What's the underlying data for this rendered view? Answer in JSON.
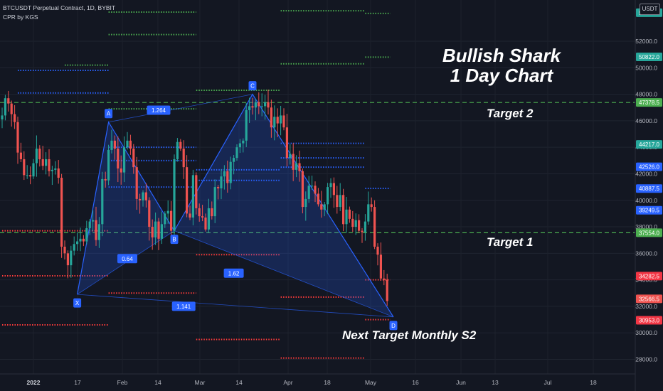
{
  "header": {
    "title": "BTCUSDT Perpetual Contract, 1D, BYBIT",
    "indicator": "CPR by KGS"
  },
  "currency_button": "USDT",
  "annotations": {
    "title_line1": "Bullish Shark",
    "title_line2": "1 Day Chart",
    "target2": "Target 2",
    "target1": "Target 1",
    "next_target": "Next Target Monthly S2"
  },
  "colors": {
    "background": "#131722",
    "bull": "#26a69a",
    "bear": "#ef5350",
    "pattern": "#2962ff",
    "target_line": "#4caf50",
    "r_level": "#4caf50",
    "s_level": "#ff3b3b",
    "pivot": "#2962ff"
  },
  "chart_data": {
    "type": "candlestick",
    "title": "BTCUSDT Perpetual Contract, 1D, BYBIT",
    "x_tick_labels": [
      "2022",
      "17",
      "Feb",
      "14",
      "Mar",
      "14",
      "Apr",
      "18",
      "May",
      "16",
      "Jun",
      "13",
      "Jul",
      "18"
    ],
    "y_ticks": [
      28000,
      30000,
      32000,
      34000,
      36000,
      38000,
      40000,
      42000,
      44000,
      46000,
      48000,
      50000,
      52000
    ],
    "ylim": [
      27000,
      54500
    ],
    "closes": [
      46400,
      47700,
      47300,
      46500,
      45900,
      43600,
      43100,
      41900,
      41900,
      41800,
      42800,
      43900,
      43100,
      42600,
      43100,
      42200,
      42300,
      42400,
      41700,
      36500,
      36000,
      35100,
      36200,
      36700,
      36900,
      37100,
      36900,
      37900,
      38400,
      38500,
      37000,
      38200,
      41600,
      41500,
      43800,
      44500,
      43900,
      42400,
      42100,
      44000,
      44500,
      43900,
      42500,
      40100,
      40000,
      40600,
      40000,
      38000,
      37200,
      38400,
      37100,
      38200,
      39000,
      39200,
      37700,
      43100,
      44400,
      43900,
      42500,
      39000,
      38700,
      41900,
      39400,
      38800,
      38700,
      37800,
      39400,
      38800,
      41000,
      40900,
      41800,
      42200,
      41300,
      42900,
      43200,
      44000,
      44300,
      44500,
      46800,
      47100,
      47000,
      47400,
      47100,
      47100,
      47400,
      47000,
      45500,
      46300,
      45800,
      46400,
      45500,
      43200,
      43500,
      42300,
      42800,
      42200,
      39500,
      40100,
      41100,
      41100,
      40500,
      39700,
      39300,
      39700,
      41000,
      41300,
      40400,
      39500,
      40400,
      38200,
      39300,
      38600,
      38000,
      38500,
      37700,
      37600,
      38400,
      39700,
      39500,
      36500,
      35900,
      34100,
      34000,
      32400
    ],
    "target_levels": [
      {
        "label": "Target 2",
        "price": 47378.5
      },
      {
        "label": "Target 1",
        "price": 37554.0
      }
    ],
    "price_labels": [
      {
        "value": "54150.0",
        "price": 54150,
        "color": "#26a69a"
      },
      {
        "value": "50822.0",
        "price": 50822,
        "color": "#26a69a"
      },
      {
        "value": "47378.5",
        "price": 47378.5,
        "color": "#4caf50"
      },
      {
        "value": "44217.0",
        "price": 44217,
        "color": "#26a69a"
      },
      {
        "value": "42526.0",
        "price": 42526,
        "color": "#2962ff"
      },
      {
        "value": "40887.5",
        "price": 40887.5,
        "color": "#2962ff"
      },
      {
        "value": "39249.5",
        "price": 39249.5,
        "color": "#2962ff"
      },
      {
        "value": "37554.0",
        "price": 37554,
        "color": "#4caf50"
      },
      {
        "value": "34282.5",
        "price": 34282.5,
        "color": "#f23645"
      },
      {
        "value": "32566.5",
        "price": 32566.5,
        "color": "#ef5350"
      },
      {
        "value": "30953.0",
        "price": 30953,
        "color": "#f23645"
      }
    ],
    "harmonic_pattern": {
      "points": [
        {
          "label": "X",
          "bar": 24,
          "price": 32900
        },
        {
          "label": "A",
          "bar": 34,
          "price": 45900
        },
        {
          "label": "B",
          "bar": 55,
          "price": 37700
        },
        {
          "label": "C",
          "bar": 80,
          "price": 48000
        },
        {
          "label": "D",
          "bar": 125,
          "price": 31200
        }
      ],
      "ratios": [
        {
          "label": "0.64",
          "bar": 40,
          "price": 35600
        },
        {
          "label": "1.264",
          "bar": 50,
          "price": 46800
        },
        {
          "label": "1.62",
          "bar": 74,
          "price": 34500
        },
        {
          "label": "1.141",
          "bar": 58,
          "price": 32000
        }
      ]
    },
    "pivot_levels": {
      "green": [
        {
          "from": 20,
          "to": 34,
          "price": 50200
        },
        {
          "from": 34,
          "to": 62,
          "price": 54200
        },
        {
          "from": 34,
          "to": 62,
          "price": 52500
        },
        {
          "from": 34,
          "to": 62,
          "price": 46900
        },
        {
          "from": 62,
          "to": 89,
          "price": 48300
        },
        {
          "from": 89,
          "to": 116,
          "price": 54300
        },
        {
          "from": 89,
          "to": 116,
          "price": 50300
        },
        {
          "from": 116,
          "to": 124,
          "price": 54100
        },
        {
          "from": 116,
          "to": 124,
          "price": 50800
        }
      ],
      "red": [
        {
          "from": 0,
          "to": 34,
          "price": 34300
        },
        {
          "from": 0,
          "to": 34,
          "price": 30600
        },
        {
          "from": 34,
          "to": 62,
          "price": 33000
        },
        {
          "from": 62,
          "to": 89,
          "price": 29500
        },
        {
          "from": 62,
          "to": 89,
          "price": 35900
        },
        {
          "from": 89,
          "to": 116,
          "price": 32700
        },
        {
          "from": 89,
          "to": 116,
          "price": 28100
        },
        {
          "from": 116,
          "to": 124,
          "price": 34000
        },
        {
          "from": 116,
          "to": 124,
          "price": 31000
        },
        {
          "from": 0,
          "to": 34,
          "price": 37700
        }
      ],
      "blue": [
        {
          "from": 5,
          "to": 34,
          "price": 49800
        },
        {
          "from": 5,
          "to": 34,
          "price": 48100
        },
        {
          "from": 34,
          "to": 62,
          "price": 44000
        },
        {
          "from": 34,
          "to": 62,
          "price": 43000
        },
        {
          "from": 34,
          "to": 62,
          "price": 41000
        },
        {
          "from": 62,
          "to": 89,
          "price": 42300
        },
        {
          "from": 62,
          "to": 89,
          "price": 41500
        },
        {
          "from": 89,
          "to": 116,
          "price": 44300
        },
        {
          "from": 89,
          "to": 116,
          "price": 43200
        },
        {
          "from": 89,
          "to": 116,
          "price": 42500
        },
        {
          "from": 116,
          "to": 124,
          "price": 40900
        }
      ]
    }
  }
}
